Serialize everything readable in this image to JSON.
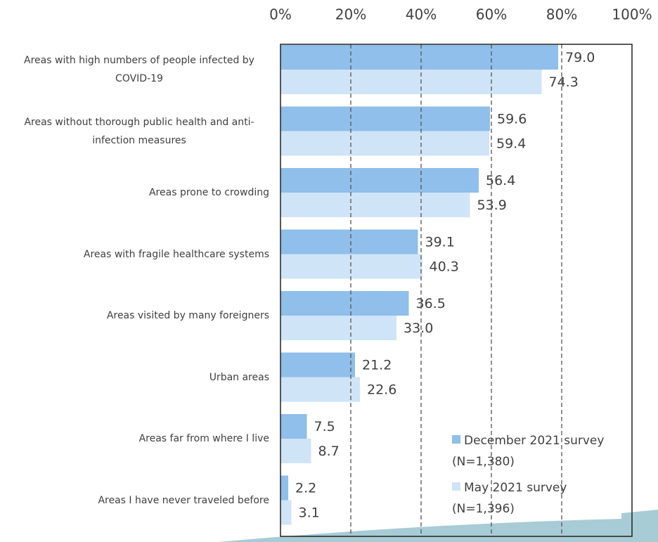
{
  "chart_data": {
    "type": "bar",
    "orientation": "horizontal",
    "categories": [
      "Areas with high numbers of people infected by COVID-19",
      "Areas without thorough public health and anti-infection measures",
      "Areas prone to crowding",
      "Areas with fragile healthcare systems",
      "Areas visited by many foreigners",
      "Urban areas",
      "Areas far from where I live",
      "Areas I have never traveled before"
    ],
    "series": [
      {
        "name": "December 2021 survey",
        "note": "(N=1,380)",
        "color": "#8fbfea",
        "values": [
          79.0,
          59.6,
          56.4,
          39.1,
          36.5,
          21.2,
          7.5,
          2.2
        ],
        "value_labels": [
          "79.0",
          "59.6",
          "56.4",
          "39.1",
          "36.5",
          "21.2",
          "7.5",
          "2.2"
        ]
      },
      {
        "name": "May 2021 survey",
        "note": "(N=1,396)",
        "color": "#cfe4f7",
        "values": [
          74.3,
          59.4,
          53.9,
          40.3,
          33.0,
          22.6,
          8.7,
          3.1
        ],
        "value_labels": [
          "74.3",
          "59.4",
          "53.9",
          "40.3",
          "33.0",
          "22.6",
          "8.7",
          "3.1"
        ]
      }
    ],
    "xlim": [
      0,
      100
    ],
    "xticks": [
      {
        "value": 0,
        "label": "0%"
      },
      {
        "value": 20,
        "label": "20%"
      },
      {
        "value": 40,
        "label": "40%"
      },
      {
        "value": 60,
        "label": "60%"
      },
      {
        "value": 80,
        "label": "80%"
      },
      {
        "value": 100,
        "label": "100%"
      }
    ],
    "grid": true
  }
}
